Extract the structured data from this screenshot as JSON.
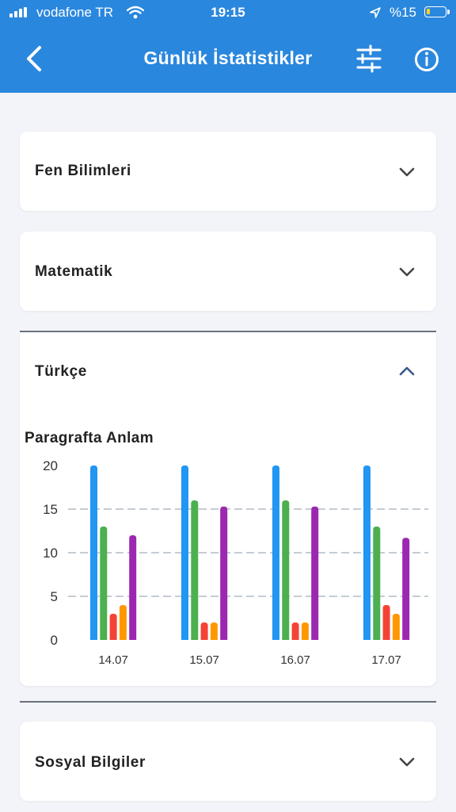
{
  "status_bar": {
    "carrier": "vodafone TR",
    "time": "19:15",
    "battery": "%15"
  },
  "header": {
    "title": "Günlük İstatistikler",
    "back_icon": "chevron-left-icon",
    "filter_icon": "sliders-icon",
    "info_icon": "info-icon"
  },
  "subjects": [
    {
      "label": "Fen Bilimleri",
      "expanded": false
    },
    {
      "label": "Matematik",
      "expanded": false
    },
    {
      "label": "Türkçe",
      "expanded": true
    },
    {
      "label": "Sosyal Bilgiler",
      "expanded": false
    }
  ],
  "chart_data": {
    "type": "bar",
    "title": "Paragrafta Anlam",
    "categories": [
      "14.07",
      "15.07",
      "16.07",
      "17.07"
    ],
    "ylim": [
      0,
      20
    ],
    "yticks": [
      0,
      5,
      10,
      15,
      20
    ],
    "grid": "dashed horizontal",
    "series": [
      {
        "color": "#2196f3",
        "values": [
          20,
          20,
          20,
          20
        ]
      },
      {
        "color": "#4caf50",
        "values": [
          13,
          16,
          16,
          13
        ]
      },
      {
        "color": "#f44336",
        "values": [
          3,
          2,
          2,
          4
        ]
      },
      {
        "color": "#ff9800",
        "values": [
          4,
          2,
          2,
          3
        ]
      },
      {
        "color": "#9c27b0",
        "values": [
          12,
          15.3,
          15.3,
          11.7
        ]
      }
    ]
  }
}
